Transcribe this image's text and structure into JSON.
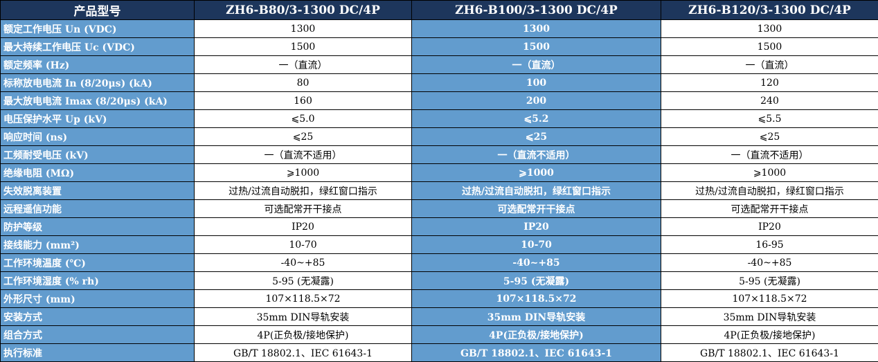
{
  "colors": {
    "header_bg": "#1d365c",
    "blue_bg": "#629cce",
    "white_bg": "#ffffff"
  },
  "header": [
    "产品型号",
    "ZH6-B80/3-1300 DC/4P",
    "ZH6-B100/3-1300 DC/4P",
    "ZH6-B120/3-1300 DC/4P"
  ],
  "rows": [
    [
      "额定工作电压 Un (VDC)",
      "1300",
      "1300",
      "1300"
    ],
    [
      "最大持续工作电压 Uc (VDC)",
      "1500",
      "1500",
      "1500"
    ],
    [
      "额定频率 (Hz)",
      "一（直流）",
      "一（直流）",
      "一（直流）"
    ],
    [
      "标称放电电流 In (8/20μs) (kA)",
      "80",
      "100",
      "120"
    ],
    [
      "最大放电电流 Imax (8/20μs) (kA)",
      "160",
      "200",
      "240"
    ],
    [
      "电压保护水平 Up (kV)",
      "⩽5.0",
      "⩽5.2",
      "⩽5.5"
    ],
    [
      "响应时间 (ns)",
      "⩽25",
      "⩽25",
      "⩽25"
    ],
    [
      "工频耐受电压 (kV)",
      "一（直流不适用）",
      "一（直流不适用）",
      "一（直流不适用）"
    ],
    [
      "绝缘电阻 (MΩ)",
      "⩾1000",
      "⩾1000",
      "⩾1000"
    ],
    [
      "失效脱离装置",
      "过热/过流自动脱扣，绿红窗口指示",
      "过热/过流自动脱扣，绿红窗口指示",
      "过热/过流自动脱扣，绿红窗口指示"
    ],
    [
      "远程遥信功能",
      "可选配常开干接点",
      "可选配常开干接点",
      "可选配常开干接点"
    ],
    [
      "防护等级",
      "IP20",
      "IP20",
      "IP20"
    ],
    [
      "接线能力 (mm²)",
      "10-70",
      "10-70",
      "16-95"
    ],
    [
      "工作环境温度 (℃)",
      "-40~+85",
      "-40~+85",
      "-40~+85"
    ],
    [
      "工作环境湿度 (% rh)",
      "5-95 (无凝露)",
      "5-95 (无凝露)",
      "5-95 (无凝露)"
    ],
    [
      "外形尺寸 (mm)",
      "107×118.5×72",
      "107×118.5×72",
      "107×118.5×72"
    ],
    [
      "安装方式",
      "35mm DIN导轨安装",
      "35mm DIN导轨安装",
      "35mm DIN导轨安装"
    ],
    [
      "组合方式",
      "4P(正负极/接地保护)",
      "4P(正负极/接地保护)",
      "4P(正负极/接地保护)"
    ],
    [
      "执行标准",
      "GB/T 18802.1、IEC 61643-1",
      "GB/T 18802.1、IEC 61643-1",
      "GB/T 18802.1、IEC 61643-1"
    ]
  ]
}
